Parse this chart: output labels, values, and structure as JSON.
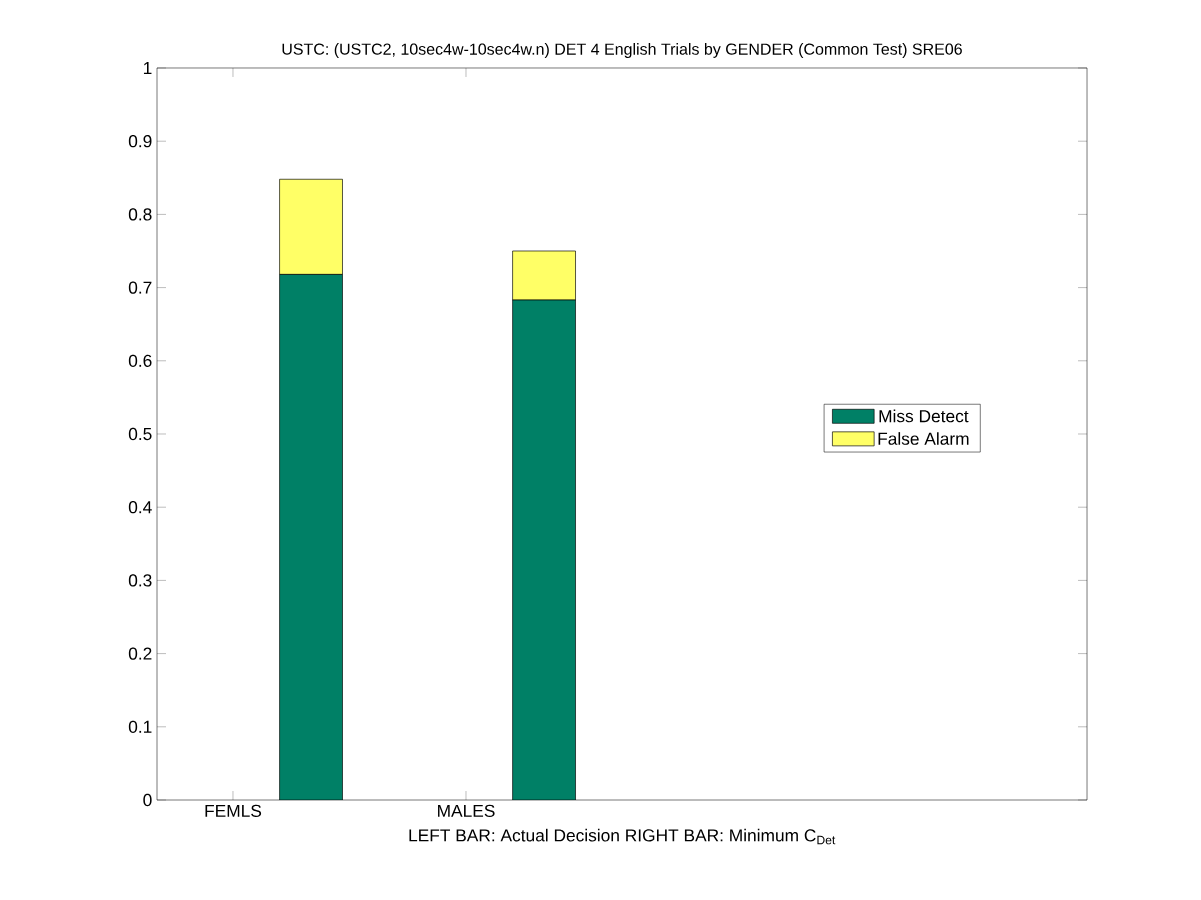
{
  "chart_data": {
    "type": "bar",
    "title": "USTC: (USTC2, 10sec4w-10sec4w.n) DET 4 English Trials by GENDER (Common Test) SRE06",
    "xlabel": "LEFT BAR: Actual Decision     RIGHT BAR: Minimum C$_{Det}$",
    "categories": [
      "FEMLS",
      "MALES"
    ],
    "series": [
      {
        "name": "Miss Detect",
        "color": "#008066",
        "values": [
          0.718,
          0.683
        ]
      },
      {
        "name": "False Alarm",
        "color": "#ffff66",
        "values": [
          0.13,
          0.067
        ]
      }
    ],
    "stacked": true,
    "legend": "right",
    "ylim": [
      0,
      1
    ],
    "yticks": [
      0,
      0.1,
      0.2,
      0.3,
      0.4,
      0.5,
      0.6,
      0.7,
      0.8,
      0.9,
      1
    ]
  }
}
